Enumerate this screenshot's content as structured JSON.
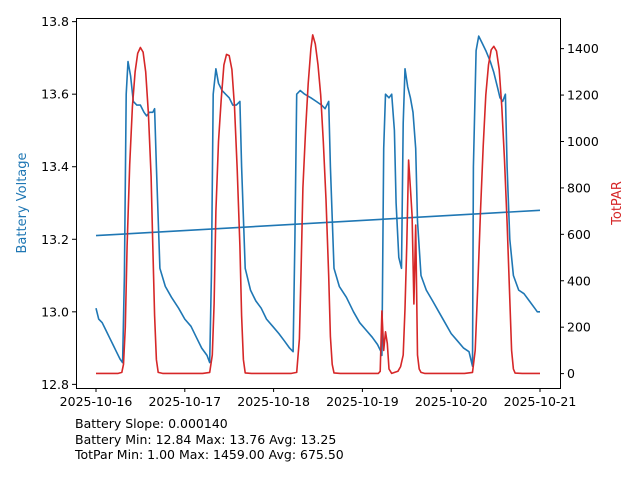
{
  "chart_data": {
    "type": "line",
    "x_label": "",
    "y_left_label": "Battery Voltage",
    "y_right_label": "TotPAR",
    "colors": {
      "battery": "#1f77b4",
      "totpar": "#d62728",
      "trend": "#1f77b4"
    },
    "x_ticks": [
      "2025-10-16",
      "2025-10-17",
      "2025-10-18",
      "2025-10-19",
      "2025-10-20",
      "2025-10-21"
    ],
    "x_range_days": [
      0,
      5
    ],
    "y_left_ticks": [
      "12.8",
      "13.0",
      "13.2",
      "13.4",
      "13.6",
      "13.8"
    ],
    "y_left_range": [
      12.79,
      13.81
    ],
    "y_right_ticks": [
      "0",
      "200",
      "400",
      "600",
      "800",
      "1000",
      "1200",
      "1400"
    ],
    "y_right_range": [
      -62,
      1532
    ],
    "grid": false,
    "legend": "none",
    "series": [
      {
        "key": "battery",
        "axis": "left",
        "points": [
          [
            0.0,
            13.01
          ],
          [
            0.03,
            12.98
          ],
          [
            0.07,
            12.97
          ],
          [
            0.11,
            12.95
          ],
          [
            0.15,
            12.93
          ],
          [
            0.19,
            12.91
          ],
          [
            0.23,
            12.89
          ],
          [
            0.27,
            12.87
          ],
          [
            0.3,
            12.86
          ],
          [
            0.32,
            13.1
          ],
          [
            0.34,
            13.6
          ],
          [
            0.36,
            13.69
          ],
          [
            0.39,
            13.65
          ],
          [
            0.42,
            13.58
          ],
          [
            0.46,
            13.57
          ],
          [
            0.5,
            13.57
          ],
          [
            0.54,
            13.55
          ],
          [
            0.57,
            13.54
          ],
          [
            0.6,
            13.55
          ],
          [
            0.64,
            13.55
          ],
          [
            0.66,
            13.56
          ],
          [
            0.68,
            13.4
          ],
          [
            0.72,
            13.12
          ],
          [
            0.78,
            13.07
          ],
          [
            0.85,
            13.04
          ],
          [
            0.93,
            13.01
          ],
          [
            1.0,
            12.98
          ],
          [
            1.07,
            12.96
          ],
          [
            1.13,
            12.93
          ],
          [
            1.19,
            12.9
          ],
          [
            1.25,
            12.88
          ],
          [
            1.28,
            12.86
          ],
          [
            1.3,
            13.1
          ],
          [
            1.32,
            13.6
          ],
          [
            1.35,
            13.67
          ],
          [
            1.38,
            13.63
          ],
          [
            1.42,
            13.61
          ],
          [
            1.46,
            13.6
          ],
          [
            1.5,
            13.59
          ],
          [
            1.54,
            13.57
          ],
          [
            1.58,
            13.57
          ],
          [
            1.62,
            13.58
          ],
          [
            1.64,
            13.4
          ],
          [
            1.68,
            13.12
          ],
          [
            1.74,
            13.06
          ],
          [
            1.8,
            13.03
          ],
          [
            1.86,
            13.01
          ],
          [
            1.92,
            12.98
          ],
          [
            1.99,
            12.96
          ],
          [
            2.06,
            12.94
          ],
          [
            2.12,
            12.92
          ],
          [
            2.18,
            12.9
          ],
          [
            2.22,
            12.89
          ],
          [
            2.24,
            13.2
          ],
          [
            2.26,
            13.6
          ],
          [
            2.3,
            13.61
          ],
          [
            2.35,
            13.6
          ],
          [
            2.42,
            13.59
          ],
          [
            2.48,
            13.58
          ],
          [
            2.54,
            13.57
          ],
          [
            2.58,
            13.56
          ],
          [
            2.62,
            13.58
          ],
          [
            2.64,
            13.4
          ],
          [
            2.68,
            13.12
          ],
          [
            2.74,
            13.07
          ],
          [
            2.82,
            13.04
          ],
          [
            2.9,
            13.0
          ],
          [
            2.97,
            12.97
          ],
          [
            3.04,
            12.95
          ],
          [
            3.11,
            12.93
          ],
          [
            3.17,
            12.91
          ],
          [
            3.21,
            12.89
          ],
          [
            3.22,
            12.88
          ],
          [
            3.24,
            13.45
          ],
          [
            3.26,
            13.6
          ],
          [
            3.3,
            13.59
          ],
          [
            3.33,
            13.6
          ],
          [
            3.36,
            13.5
          ],
          [
            3.38,
            13.3
          ],
          [
            3.41,
            13.15
          ],
          [
            3.44,
            13.12
          ],
          [
            3.46,
            13.52
          ],
          [
            3.48,
            13.67
          ],
          [
            3.51,
            13.62
          ],
          [
            3.54,
            13.59
          ],
          [
            3.57,
            13.55
          ],
          [
            3.6,
            13.45
          ],
          [
            3.62,
            13.25
          ],
          [
            3.66,
            13.1
          ],
          [
            3.72,
            13.06
          ],
          [
            3.79,
            13.03
          ],
          [
            3.86,
            13.0
          ],
          [
            3.93,
            12.97
          ],
          [
            4.0,
            12.94
          ],
          [
            4.07,
            12.92
          ],
          [
            4.14,
            12.9
          ],
          [
            4.2,
            12.89
          ],
          [
            4.24,
            12.85
          ],
          [
            4.25,
            13.4
          ],
          [
            4.28,
            13.72
          ],
          [
            4.31,
            13.76
          ],
          [
            4.35,
            13.74
          ],
          [
            4.39,
            13.72
          ],
          [
            4.44,
            13.69
          ],
          [
            4.48,
            13.66
          ],
          [
            4.52,
            13.62
          ],
          [
            4.55,
            13.59
          ],
          [
            4.58,
            13.58
          ],
          [
            4.61,
            13.6
          ],
          [
            4.63,
            13.4
          ],
          [
            4.66,
            13.2
          ],
          [
            4.7,
            13.1
          ],
          [
            4.76,
            13.06
          ],
          [
            4.82,
            13.05
          ],
          [
            4.88,
            13.03
          ],
          [
            4.94,
            13.01
          ],
          [
            4.97,
            13.0
          ],
          [
            5.0,
            13.0
          ]
        ]
      },
      {
        "key": "trend",
        "axis": "left",
        "points": [
          [
            0.0,
            13.21
          ],
          [
            5.0,
            13.28
          ]
        ]
      },
      {
        "key": "totpar",
        "axis": "right",
        "points": [
          [
            0.0,
            1
          ],
          [
            0.15,
            1
          ],
          [
            0.25,
            1
          ],
          [
            0.29,
            5
          ],
          [
            0.31,
            40
          ],
          [
            0.33,
            200
          ],
          [
            0.35,
            550
          ],
          [
            0.38,
            900
          ],
          [
            0.41,
            1150
          ],
          [
            0.44,
            1300
          ],
          [
            0.47,
            1380
          ],
          [
            0.5,
            1405
          ],
          [
            0.53,
            1385
          ],
          [
            0.56,
            1300
          ],
          [
            0.59,
            1120
          ],
          [
            0.62,
            850
          ],
          [
            0.64,
            550
          ],
          [
            0.66,
            250
          ],
          [
            0.68,
            60
          ],
          [
            0.7,
            5
          ],
          [
            0.75,
            1
          ],
          [
            1.2,
            1
          ],
          [
            1.28,
            5
          ],
          [
            1.31,
            80
          ],
          [
            1.33,
            300
          ],
          [
            1.35,
            700
          ],
          [
            1.38,
            1000
          ],
          [
            1.41,
            1180
          ],
          [
            1.44,
            1330
          ],
          [
            1.47,
            1375
          ],
          [
            1.5,
            1370
          ],
          [
            1.53,
            1310
          ],
          [
            1.56,
            1150
          ],
          [
            1.59,
            880
          ],
          [
            1.62,
            550
          ],
          [
            1.64,
            250
          ],
          [
            1.66,
            60
          ],
          [
            1.68,
            3
          ],
          [
            1.75,
            1
          ],
          [
            2.2,
            1
          ],
          [
            2.26,
            5
          ],
          [
            2.29,
            150
          ],
          [
            2.31,
            450
          ],
          [
            2.33,
            800
          ],
          [
            2.36,
            1050
          ],
          [
            2.39,
            1250
          ],
          [
            2.42,
            1400
          ],
          [
            2.44,
            1459
          ],
          [
            2.47,
            1420
          ],
          [
            2.5,
            1330
          ],
          [
            2.53,
            1200
          ],
          [
            2.56,
            1000
          ],
          [
            2.59,
            750
          ],
          [
            2.62,
            420
          ],
          [
            2.64,
            160
          ],
          [
            2.66,
            40
          ],
          [
            2.68,
            3
          ],
          [
            2.75,
            1
          ],
          [
            3.18,
            1
          ],
          [
            3.2,
            10
          ],
          [
            3.22,
            270
          ],
          [
            3.24,
            100
          ],
          [
            3.26,
            180
          ],
          [
            3.28,
            130
          ],
          [
            3.3,
            20
          ],
          [
            3.33,
            1
          ],
          [
            3.4,
            10
          ],
          [
            3.43,
            30
          ],
          [
            3.46,
            80
          ],
          [
            3.48,
            280
          ],
          [
            3.5,
            560
          ],
          [
            3.52,
            920
          ],
          [
            3.54,
            800
          ],
          [
            3.56,
            680
          ],
          [
            3.58,
            300
          ],
          [
            3.6,
            640
          ],
          [
            3.62,
            80
          ],
          [
            3.64,
            20
          ],
          [
            3.66,
            5
          ],
          [
            3.7,
            1
          ],
          [
            4.15,
            1
          ],
          [
            4.24,
            5
          ],
          [
            4.27,
            100
          ],
          [
            4.3,
            380
          ],
          [
            4.33,
            700
          ],
          [
            4.36,
            980
          ],
          [
            4.39,
            1200
          ],
          [
            4.42,
            1330
          ],
          [
            4.45,
            1395
          ],
          [
            4.48,
            1410
          ],
          [
            4.51,
            1390
          ],
          [
            4.54,
            1310
          ],
          [
            4.57,
            1150
          ],
          [
            4.6,
            920
          ],
          [
            4.63,
            650
          ],
          [
            4.66,
            320
          ],
          [
            4.68,
            100
          ],
          [
            4.7,
            20
          ],
          [
            4.72,
            2
          ],
          [
            4.8,
            1
          ],
          [
            5.0,
            1
          ]
        ]
      }
    ]
  },
  "stats": {
    "slope": "Battery Slope: 0.000140",
    "battery": "Battery Min: 12.84 Max: 13.76 Avg: 13.25",
    "totpar": "TotPar Min: 1.00 Max: 1459.00 Avg: 675.50"
  }
}
